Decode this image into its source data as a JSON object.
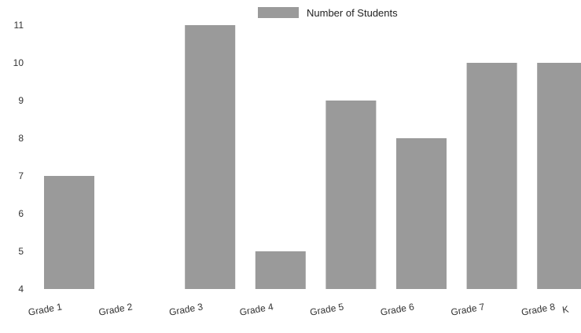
{
  "chart_data": {
    "type": "bar",
    "categories": [
      "Grade 1",
      "Grade 2",
      "Grade 3",
      "Grade 4",
      "Grade 5",
      "Grade 6",
      "Grade 7",
      "Grade 8",
      "K"
    ],
    "series": [
      {
        "name": "Number of Students",
        "values": [
          7,
          null,
          11,
          5,
          9,
          8,
          10,
          10,
          null
        ]
      }
    ],
    "ylim": [
      4,
      11
    ],
    "yticks": [
      4,
      5,
      6,
      7,
      8,
      9,
      10,
      11
    ],
    "legend": "top",
    "grid": false,
    "bar_color": "#9a9a9a"
  }
}
